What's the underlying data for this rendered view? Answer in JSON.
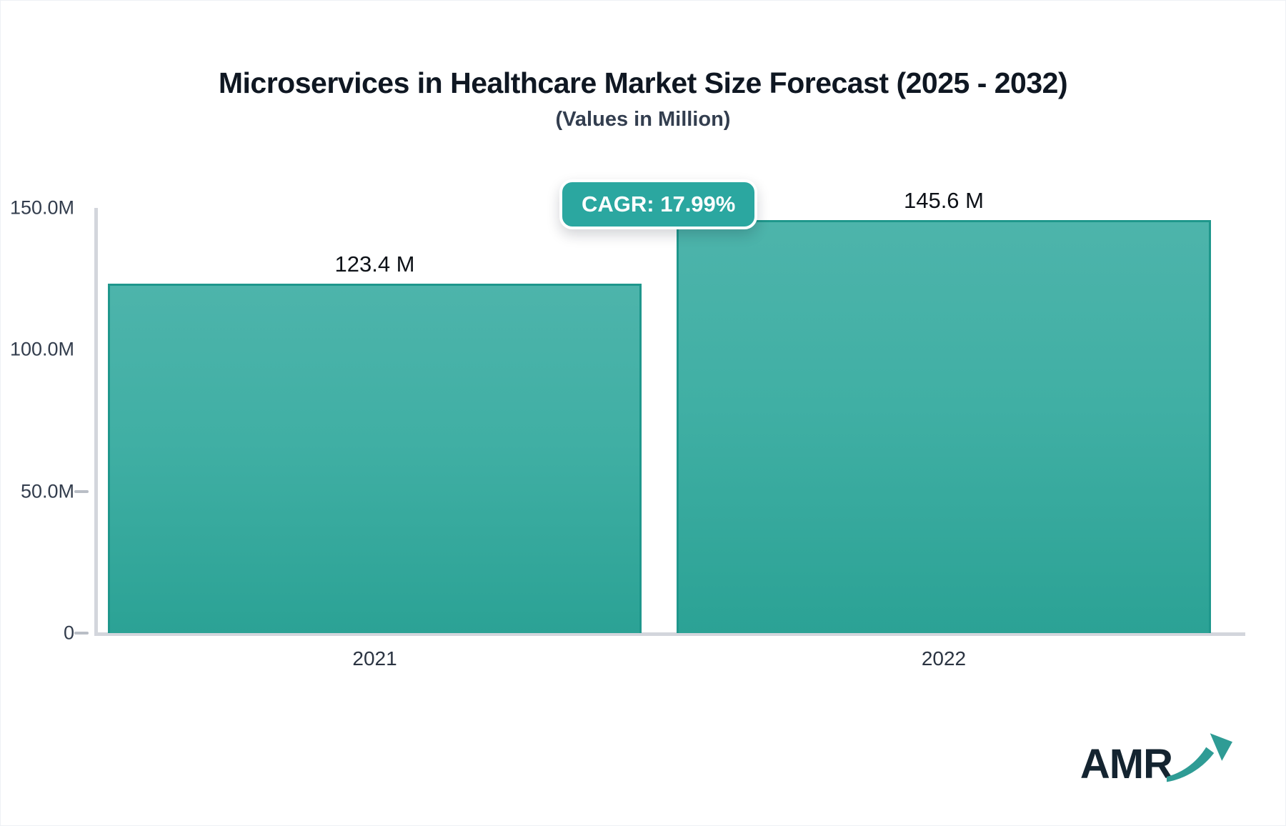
{
  "page": {
    "title": "Microservices in Healthcare Market Size Forecast (2025 - 2032)",
    "subtitle": "(Values in Million)"
  },
  "badge": {
    "label": "CAGR: 17.99%"
  },
  "logo": {
    "text": "AMR",
    "icon": "trend-up-arrow-icon"
  },
  "colors": {
    "bar_gradient_top": "#4db4ab",
    "bar_gradient_bottom": "#2ba295",
    "bar_border": "#1f978c",
    "badge_background": "#2ba7a0",
    "axis_line": "#d3d6dc",
    "title_text": "#0f1722",
    "axis_text": "#333d4d",
    "logo_navy": "#142430",
    "logo_arrow_teal": "#2f9c95"
  },
  "chart_data": {
    "type": "bar",
    "title": "Microservices in Healthcare Market Size Forecast (2025 - 2032)",
    "subtitle": "(Values in Million)",
    "unit": "Million",
    "categories": [
      "2021",
      "2022"
    ],
    "values": [
      123.4,
      145.6
    ],
    "value_labels": [
      "123.4 M",
      "145.6 M"
    ],
    "annotation": "CAGR: 17.99%",
    "ylim": [
      0,
      150
    ],
    "yticks": [
      {
        "value": 150,
        "label": "150.0M",
        "dash": false
      },
      {
        "value": 100,
        "label": "100.0M",
        "dash": false
      },
      {
        "value": 50,
        "label": "50.0M",
        "dash": true
      },
      {
        "value": 0,
        "label": "0",
        "dash": true
      }
    ],
    "grid": false,
    "legend": false
  }
}
